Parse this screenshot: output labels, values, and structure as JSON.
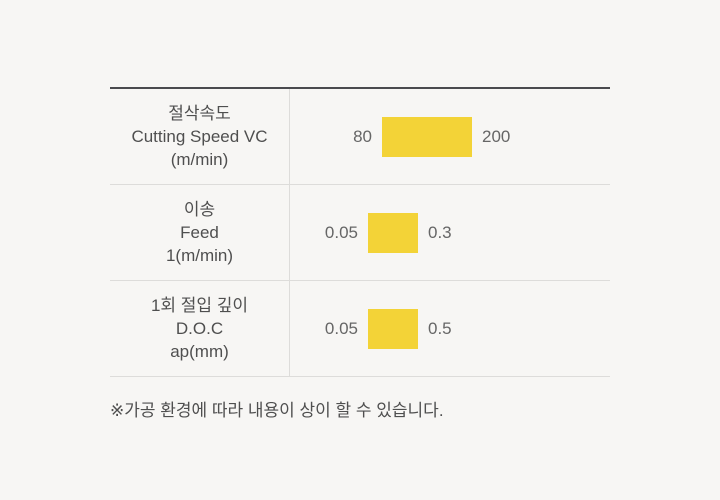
{
  "page": {
    "background": "#F7F6F4",
    "note": "※가공 환경에 따라 내용이 상이 할 수 있습니다."
  },
  "colors": {
    "bar": "#F3D337",
    "top_border": "#4A4A4E",
    "divider": "#DDDCDA",
    "label_text": "#4F4F4F",
    "value_text": "#666666"
  },
  "table": {
    "rows": [
      {
        "name_ko": "절삭속도",
        "name_en": "Cutting Speed VC",
        "unit": "(m/min)",
        "min": "80",
        "max": "200"
      },
      {
        "name_ko": "이송",
        "name_en": "Feed",
        "unit": "1(m/min)",
        "min": "0.05",
        "max": "0.3"
      },
      {
        "name_ko": "1회 절입 깊이",
        "name_en": "D.O.C",
        "unit": "ap(mm)",
        "min": "0.05",
        "max": "0.5"
      }
    ]
  },
  "chart_data": {
    "type": "bar",
    "subtype": "range-bars",
    "orientation": "horizontal",
    "categories": [
      "절삭속도 Cutting Speed VC (m/min)",
      "이송 Feed 1(m/min)",
      "1회 절입 깊이 D.O.C ap(mm)"
    ],
    "series": [
      {
        "name": "range_min",
        "values": [
          80,
          0.05,
          0.05
        ]
      },
      {
        "name": "range_max",
        "values": [
          200,
          0.3,
          0.5
        ]
      }
    ],
    "bar_color": "#F3D337",
    "legend": "none",
    "grid": false,
    "note": "※가공 환경에 따라 내용이 상이 할 수 있습니다."
  }
}
